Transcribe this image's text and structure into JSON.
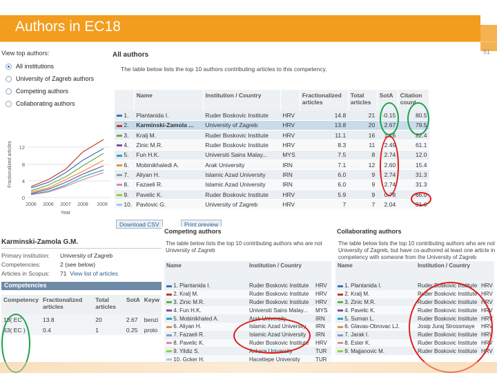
{
  "slide": {
    "title": "Authors in EC18",
    "number": "51"
  },
  "view_options": {
    "header": "View top authors:",
    "options": [
      {
        "label": "All institutions",
        "selected": true
      },
      {
        "label": "University of Zagreb authors",
        "selected": false
      },
      {
        "label": "Competing authors",
        "selected": false
      },
      {
        "label": "Collaborating authors",
        "selected": false
      }
    ]
  },
  "mini_chart": {
    "ylabel": "Fractionalized articles",
    "yticks": [
      "12",
      "8",
      "4",
      "0"
    ],
    "xticks": [
      "2006",
      "2006",
      "2007",
      "2008",
      "2009"
    ],
    "xlabel": "Year"
  },
  "all_authors": {
    "title": "All authors",
    "description": "The table below lists the top 10 authors contributing articles to this competency.",
    "columns": [
      "Name",
      "Institution / Country",
      "",
      "Fractionalized articles",
      "Total articles",
      "SotA",
      "Citation count"
    ],
    "rows": [
      {
        "idx": "1.",
        "name": "Plantanida I.",
        "inst": "Ruder Boskovic Institute",
        "cc": "HRV",
        "frac": "14.8",
        "total": "21",
        "sota": "-0.15",
        "cit": "80.5",
        "color": "#3b6fb6"
      },
      {
        "idx": "2.",
        "name": "Karminski-Zamola ...",
        "inst": "University of Zagreb",
        "cc": "HRV",
        "frac": "13.8",
        "total": "20",
        "sota": "2.67",
        "cit": "79.5",
        "color": "#c0392b"
      },
      {
        "idx": "3.",
        "name": "Kralj M.",
        "inst": "Ruder Boskovic Institute",
        "cc": "HRV",
        "frac": "11.1",
        "total": "16",
        "sota": "1.16",
        "cit": "82.4",
        "color": "#6aa84f"
      },
      {
        "idx": "4.",
        "name": "Zinic M.R.",
        "inst": "Ruder Boskovic Institute",
        "cc": "HRV",
        "frac": "8.3",
        "total": "11",
        "sota": "2.49",
        "cit": "61.1",
        "color": "#7b4f9e"
      },
      {
        "idx": "5.",
        "name": "Fun H.K.",
        "inst": "Universiti Sains Malay...",
        "cc": "MYS",
        "frac": "7.5",
        "total": "8",
        "sota": "2.74",
        "cit": "12.0",
        "color": "#2aa5b8"
      },
      {
        "idx": "6.",
        "name": "Mobinikhaledi A.",
        "inst": "Arak University",
        "cc": "IRN",
        "frac": "7.1",
        "total": "12",
        "sota": "2.60",
        "cit": "15.4",
        "color": "#e69138"
      },
      {
        "idx": "7.",
        "name": "Aliyan H.",
        "inst": "Islamic Azad University",
        "cc": "IRN",
        "frac": "6.0",
        "total": "9",
        "sota": "2.74",
        "cit": "31.3",
        "color": "#8e9bb0"
      },
      {
        "idx": "8.",
        "name": "Fazaeli R.",
        "inst": "Islamic Azad University",
        "cc": "IRN",
        "frac": "6.0",
        "total": "9",
        "sota": "2.74",
        "cit": "31.3",
        "color": "#d48fa0"
      },
      {
        "idx": "9.",
        "name": "Pavelic K.",
        "inst": "Ruder Boskovic Institute",
        "cc": "HRV",
        "frac": "5.9",
        "total": "9",
        "sota": "0.78",
        "cit": "66.0",
        "color": "#9acd32"
      },
      {
        "idx": "10.",
        "name": "Pavlovic G.",
        "inst": "University of Zagreb",
        "cc": "HRV",
        "frac": "7",
        "total": "7",
        "sota": "2.04",
        "cit": "31.0",
        "color": "#a9c4e0"
      }
    ],
    "download_label": "Download CSV",
    "print_label": "Print preview"
  },
  "author_detail": {
    "name": "Karminski-Zamola G.M.",
    "fields": [
      {
        "k": "Primary institution:",
        "v": "University of Zagreb"
      },
      {
        "k": "Competencies:",
        "v": "2 (see below)"
      },
      {
        "k": "Articles in Scopus:",
        "v": "71",
        "link": "View list of articles"
      }
    ]
  },
  "competencies": {
    "header": "Competencies",
    "columns": [
      "Competency",
      "Fractionalized articles",
      "Total articles",
      "SotA",
      "Keyw"
    ],
    "rows": [
      {
        "comp": "18( EC",
        "frac": "13.8",
        "total": "20",
        "sota": "2.67",
        "kw": "benzi"
      },
      {
        "comp": "63( EC )",
        "frac": "0.4",
        "total": "1",
        "sota": "0.25",
        "kw": "proto"
      }
    ]
  },
  "competing": {
    "title": "Competing authors",
    "description": "The table below lists the top 10 contributing authors who are not University of Zagreb",
    "columns": [
      "Name",
      "Institution / Country"
    ],
    "rows": [
      {
        "idx": "1.",
        "name": "Plantanida I.",
        "inst": "Ruder Boskovic Institute",
        "cc": "HRV",
        "color": "#3b6fb6"
      },
      {
        "idx": "2.",
        "name": "Kralj M.",
        "inst": "Ruder Boskovic Institute",
        "cc": "HRV",
        "color": "#c0392b"
      },
      {
        "idx": "3.",
        "name": "Zinic M.R.",
        "inst": "Ruder Boskovic Institute",
        "cc": "HRV",
        "color": "#6aa84f"
      },
      {
        "idx": "4.",
        "name": "Fun H.K.",
        "inst": "Universiti Sains Malay...",
        "cc": "MYS",
        "color": "#7b4f9e"
      },
      {
        "idx": "5.",
        "name": "Mobinikhaled A.",
        "inst": "Arak University",
        "cc": "IRN",
        "color": "#2aa5b8"
      },
      {
        "idx": "6.",
        "name": "Aliyan H.",
        "inst": "Islamic Azad University",
        "cc": "IRN",
        "color": "#e69138"
      },
      {
        "idx": "7.",
        "name": "Fazaeli R.",
        "inst": "Islamic Azad University",
        "cc": "IRN",
        "color": "#8e9bb0"
      },
      {
        "idx": "8.",
        "name": "Pavelic K.",
        "inst": "Ruder Boskovic Institute",
        "cc": "HRV",
        "color": "#d48fa0"
      },
      {
        "idx": "9.",
        "name": "Yildiz S.",
        "inst": "Ankara University",
        "cc": "TUR",
        "color": "#9acd32"
      },
      {
        "idx": "10.",
        "name": "Gcker H.",
        "inst": "Hacettepe University",
        "cc": "TUR",
        "color": "#a9c4e0"
      }
    ]
  },
  "collaborating": {
    "title": "Collaborating authors",
    "description": "The table below lists the top 10 contributing authors who are not University of Zagreb, but have co-authored at least one article in competency with someone from the University of Zagreb",
    "columns": [
      "Name",
      "Institution / Country"
    ],
    "rows": [
      {
        "idx": "1.",
        "name": "Plantanida I.",
        "inst": "Ruder Boskovic Institute",
        "cc": "HRV",
        "color": "#3b6fb6"
      },
      {
        "idx": "2.",
        "name": "Kralj M.",
        "inst": "Ruder Boskovic Institute",
        "cc": "HRV",
        "color": "#c0392b"
      },
      {
        "idx": "3.",
        "name": "Zinic M.R.",
        "inst": "Ruder Boskovic Institute",
        "cc": "HRV",
        "color": "#6aa84f"
      },
      {
        "idx": "4.",
        "name": "Pavelic K.",
        "inst": "Ruder Boskovic Institute",
        "cc": "HRV",
        "color": "#7b4f9e"
      },
      {
        "idx": "5.",
        "name": "Suman L.",
        "inst": "Ruder Boskovic Institute",
        "cc": "HRV",
        "color": "#2aa5b8"
      },
      {
        "idx": "6.",
        "name": "Glavas-Obrovac LJ.",
        "inst": "Josip Juraj Strossmaye",
        "cc": "HRV",
        "color": "#e69138"
      },
      {
        "idx": "7.",
        "name": "Jarak I.",
        "inst": "Ruder Boskovic Institute",
        "cc": "HRV",
        "color": "#8e9bb0"
      },
      {
        "idx": "8.",
        "name": "Ester K.",
        "inst": "Ruder Boskovic Institute",
        "cc": "HRV",
        "color": "#d48fa0"
      },
      {
        "idx": "9.",
        "name": "Majjanovic M.",
        "inst": "Ruder Boskovic Institute",
        "cc": "HRV",
        "color": "#9acd32"
      }
    ]
  }
}
